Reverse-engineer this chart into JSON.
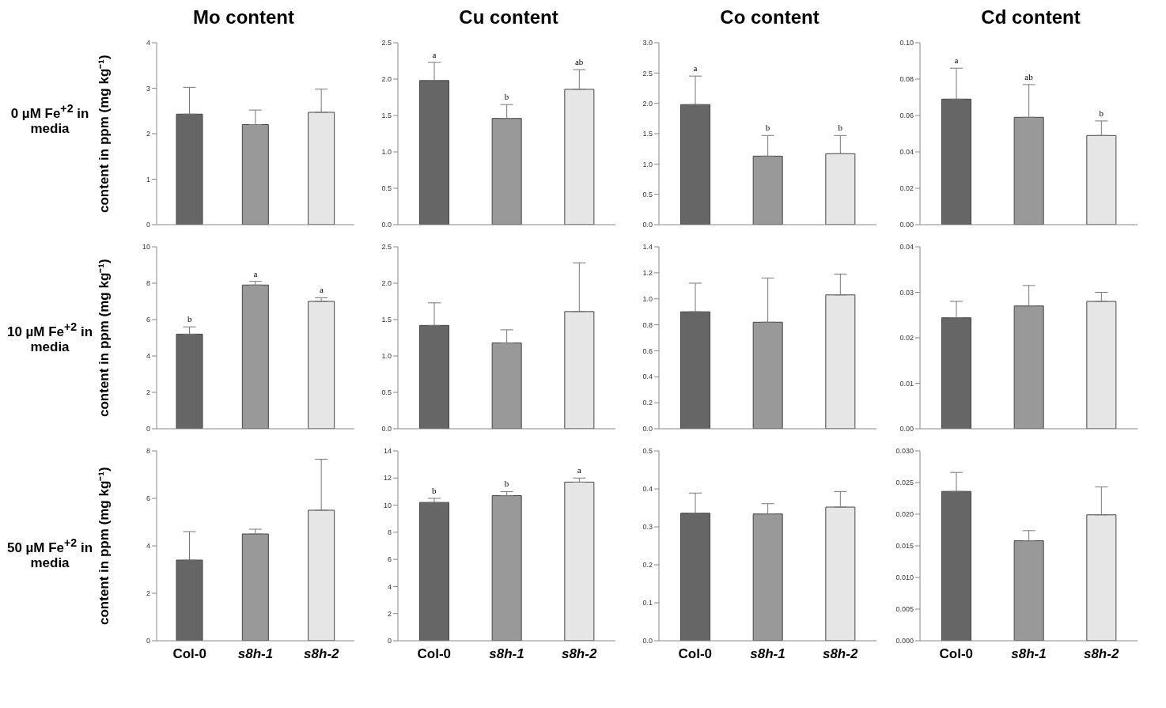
{
  "chart_data": [
    {
      "type": "bar",
      "title": "Mo content",
      "ylabel": "content in ppm (mg kg⁻¹)",
      "categories": [
        null,
        null,
        null
      ],
      "values": [
        2.43,
        2.2,
        2.47
      ],
      "errors": [
        [
          2.43,
          3.02
        ],
        [
          2.2,
          2.52
        ],
        [
          2.47,
          2.98
        ]
      ],
      "colors": [
        "#666666",
        "#999999",
        "#e6e6e6"
      ],
      "ylim": [
        0,
        4
      ],
      "yticks": [
        0,
        1,
        2,
        3,
        4
      ],
      "tick_labels": "y",
      "annotations": [
        "0 µM Fe$^{+2}$ in media"
      ]
    },
    {
      "type": "bar",
      "title": "Cu content",
      "categories": [
        null,
        null,
        null
      ],
      "values": [
        1.98,
        1.46,
        1.86
      ],
      "errors": [
        [
          1.98,
          2.23
        ],
        [
          1.46,
          1.65
        ],
        [
          1.86,
          2.13
        ]
      ],
      "colors": [
        "#666666",
        "#999999",
        "#e6e6e6"
      ],
      "ylim": [
        0,
        2.5
      ],
      "yticks": [
        {
          "value": 0,
          "label": "0.0"
        },
        {
          "value": 0.5,
          "label": "0.5"
        },
        {
          "value": 1,
          "label": "1.0"
        },
        {
          "value": 1.5,
          "label": "1.5"
        },
        {
          "value": 2,
          "label": "2.0"
        },
        {
          "value": 2.5,
          "label": "2.5"
        }
      ],
      "tick_labels": "y",
      "annotations": [
        {
          "text": "a",
          "y": 2.23
        },
        {
          "text": "b",
          "y": 1.65
        },
        {
          "text": "ab",
          "y": 2.13
        }
      ]
    },
    {
      "type": "bar",
      "title": "Co content",
      "categories": [
        null,
        null,
        null
      ],
      "values": [
        1.98,
        1.13,
        1.17
      ],
      "errors": [
        [
          1.98,
          2.45
        ],
        [
          1.13,
          1.47
        ],
        [
          1.17,
          1.47
        ]
      ],
      "colors": [
        "#666666",
        "#999999",
        "#e6e6e6"
      ],
      "ylim": [
        0,
        3
      ],
      "yticks": [
        {
          "value": 0,
          "label": "0.0"
        },
        {
          "value": 0.5,
          "label": "0.5"
        },
        {
          "value": 1,
          "label": "1.0"
        },
        {
          "value": 1.5,
          "label": "1.5"
        },
        {
          "value": 2,
          "label": "2.0"
        },
        {
          "value": 2.5,
          "label": "2.5"
        },
        {
          "value": 3,
          "label": "3.0"
        }
      ],
      "tick_labels": "y",
      "annotations": [
        {
          "text": "a",
          "y": 2.45
        },
        {
          "text": "b",
          "y": 1.47
        },
        {
          "text": "b",
          "y": 1.47
        }
      ]
    },
    {
      "type": "bar",
      "title": "Cd content",
      "categories": [
        null,
        null,
        null
      ],
      "values": [
        0.069,
        0.059,
        0.049
      ],
      "errors": [
        [
          0.069,
          0.086
        ],
        [
          0.059,
          0.077
        ],
        [
          0.049,
          0.057
        ]
      ],
      "colors": [
        "#666666",
        "#999999",
        "#e6e6e6"
      ],
      "ylim": [
        0,
        0.1
      ],
      "yticks": [
        {
          "value": 0,
          "label": "0.00"
        },
        {
          "value": 0.02,
          "label": "0.02"
        },
        {
          "value": 0.04,
          "label": "0.04"
        },
        {
          "value": 0.06,
          "label": "0.06"
        },
        {
          "value": 0.08,
          "label": "0.08"
        },
        {
          "value": 0.1,
          "label": "0.10"
        }
      ],
      "tick_labels": "y",
      "annotations": [
        {
          "text": "a",
          "y": 0.086
        },
        {
          "text": "ab",
          "y": 0.077
        },
        {
          "text": "b",
          "y": 0.057
        }
      ]
    },
    {
      "type": "bar",
      "ylabel": "content in ppm (mg kg⁻¹)",
      "categories": [
        null,
        null,
        null
      ],
      "values": [
        5.2,
        7.9,
        7.0
      ],
      "errors": [
        [
          5.2,
          5.6
        ],
        [
          7.9,
          8.1
        ],
        [
          7.0,
          7.2
        ]
      ],
      "colors": [
        "#666666",
        "#999999",
        "#e6e6e6"
      ],
      "ylim": [
        0,
        10
      ],
      "yticks": [
        0,
        2,
        4,
        6,
        8,
        10
      ],
      "tick_labels": "y",
      "annotations": [
        "10 µM Fe$^{+2}$ in media",
        {
          "text": "b",
          "y": 5.6
        },
        {
          "text": "a",
          "y": 8.1
        },
        {
          "text": "a",
          "y": 7.2
        }
      ]
    },
    {
      "type": "bar",
      "categories": [
        null,
        null,
        null
      ],
      "values": [
        1.42,
        1.18,
        1.61
      ],
      "errors": [
        [
          1.42,
          1.73
        ],
        [
          1.18,
          1.36
        ],
        [
          1.61,
          2.28
        ]
      ],
      "colors": [
        "#666666",
        "#999999",
        "#e6e6e6"
      ],
      "ylim": [
        0,
        2.5
      ],
      "yticks": [
        {
          "value": 0,
          "label": "0.0"
        },
        {
          "value": 0.5,
          "label": "0.5"
        },
        {
          "value": 1,
          "label": "1.0"
        },
        {
          "value": 1.5,
          "label": "1.5"
        },
        {
          "value": 2,
          "label": "2.0"
        },
        {
          "value": 2.5,
          "label": "2.5"
        }
      ],
      "tick_labels": "y"
    },
    {
      "type": "bar",
      "categories": [
        null,
        null,
        null
      ],
      "values": [
        0.9,
        0.82,
        1.03
      ],
      "errors": [
        [
          0.9,
          1.12
        ],
        [
          0.82,
          1.16
        ],
        [
          1.03,
          1.19
        ]
      ],
      "colors": [
        "#666666",
        "#999999",
        "#e6e6e6"
      ],
      "ylim": [
        0,
        1.4
      ],
      "yticks": [
        {
          "value": 0,
          "label": "0.0"
        },
        {
          "value": 0.2,
          "label": "0.2"
        },
        {
          "value": 0.4,
          "label": "0.4"
        },
        {
          "value": 0.6,
          "label": "0.6"
        },
        {
          "value": 0.8,
          "label": "0.8"
        },
        {
          "value": 1,
          "label": "1.0"
        },
        {
          "value": 1.2,
          "label": "1.2"
        },
        {
          "value": 1.4,
          "label": "1.4"
        }
      ],
      "tick_labels": "y"
    },
    {
      "type": "bar",
      "categories": [
        null,
        null,
        null
      ],
      "values": [
        0.0244,
        0.027,
        0.028
      ],
      "errors": [
        [
          0.0244,
          0.028
        ],
        [
          0.027,
          0.0315
        ],
        [
          0.028,
          0.03
        ]
      ],
      "colors": [
        "#666666",
        "#999999",
        "#e6e6e6"
      ],
      "ylim": [
        0,
        0.04
      ],
      "yticks": [
        {
          "value": 0,
          "label": "0.00"
        },
        {
          "value": 0.01,
          "label": "0.01"
        },
        {
          "value": 0.02,
          "label": "0.02"
        },
        {
          "value": 0.03,
          "label": "0.03"
        },
        {
          "value": 0.04,
          "label": "0.04"
        }
      ],
      "tick_labels": "y"
    },
    {
      "type": "bar",
      "ylabel": "content in ppm (mg kg⁻¹)",
      "categories": [
        "Col-0",
        "s8h-1",
        "s8h-2"
      ],
      "values": [
        3.4,
        4.5,
        5.5
      ],
      "errors": [
        [
          3.4,
          4.6
        ],
        [
          4.5,
          4.7
        ],
        [
          5.5,
          7.65
        ]
      ],
      "colors": [
        "#666666",
        "#999999",
        "#e6e6e6"
      ],
      "ylim": [
        0,
        8
      ],
      "yticks": [
        0,
        2,
        4,
        6,
        8
      ],
      "annotations": [
        "50 µM Fe$^{+2}$ in media"
      ]
    },
    {
      "type": "bar",
      "categories": [
        "Col-0",
        "s8h-1",
        "s8h-2"
      ],
      "values": [
        10.2,
        10.7,
        11.7
      ],
      "errors": [
        [
          10.2,
          10.5
        ],
        [
          10.7,
          11.0
        ],
        [
          11.7,
          12.0
        ]
      ],
      "colors": [
        "#666666",
        "#999999",
        "#e6e6e6"
      ],
      "ylim": [
        0,
        14
      ],
      "yticks": [
        0,
        2,
        4,
        6,
        8,
        10,
        12,
        14
      ],
      "annotations": [
        {
          "text": "b",
          "x": "Col-0",
          "y": 10.5
        },
        {
          "text": "b",
          "x": "s8h-1",
          "y": 11.0
        },
        {
          "text": "a",
          "x": "s8h-2",
          "y": 12.0
        }
      ]
    },
    {
      "type": "bar",
      "categories": [
        "Col-0",
        "s8h-1",
        "s8h-2"
      ],
      "values": [
        0.336,
        0.334,
        0.352
      ],
      "errors": [
        [
          0.336,
          0.389
        ],
        [
          0.334,
          0.361
        ],
        [
          0.352,
          0.393
        ]
      ],
      "colors": [
        "#666666",
        "#999999",
        "#e6e6e6"
      ],
      "ylim": [
        0,
        0.5
      ],
      "yticks": [
        {
          "value": 0,
          "label": "0.0"
        },
        {
          "value": 0.1,
          "label": "0.1"
        },
        {
          "value": 0.2,
          "label": "0.2"
        },
        {
          "value": 0.3,
          "label": "0.3"
        },
        {
          "value": 0.4,
          "label": "0.4"
        },
        {
          "value": 0.5,
          "label": "0.5"
        }
      ]
    },
    {
      "type": "bar",
      "categories": [
        "Col-0",
        "s8h-1",
        "s8h-2"
      ],
      "values": [
        0.0236,
        0.0158,
        0.0199
      ],
      "errors": [
        [
          0.0236,
          0.0266
        ],
        [
          0.0158,
          0.0174
        ],
        [
          0.0199,
          0.0243
        ]
      ],
      "colors": [
        "#666666",
        "#999999",
        "#e6e6e6"
      ],
      "ylim": [
        0,
        0.03
      ],
      "yticks": [
        {
          "value": 0,
          "label": "0.000"
        },
        {
          "value": 0.005,
          "label": "0.005"
        },
        {
          "value": 0.01,
          "label": "0.010"
        },
        {
          "value": 0.015,
          "label": "0.015"
        },
        {
          "value": 0.02,
          "label": "0.020"
        },
        {
          "value": 0.025,
          "label": "0.025"
        },
        {
          "value": 0.03,
          "label": "0.030"
        }
      ]
    }
  ]
}
